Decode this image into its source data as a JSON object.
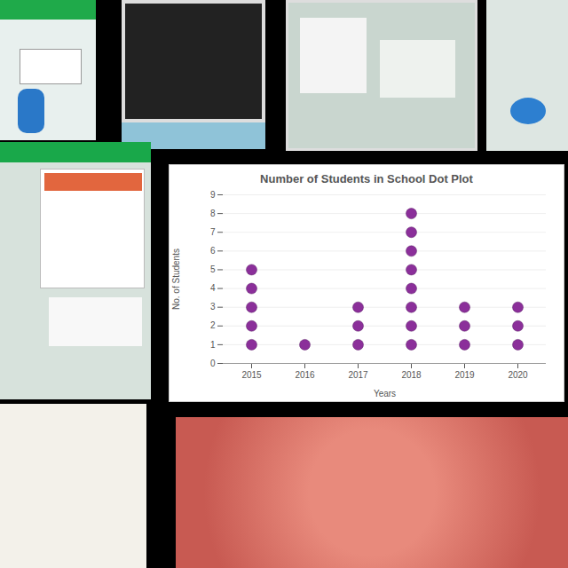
{
  "chart_data": {
    "type": "dot",
    "title": "Number of Students in School Dot Plot",
    "categories": [
      "2015",
      "2016",
      "2017",
      "2018",
      "2019",
      "2020"
    ],
    "values": [
      5,
      1,
      3,
      8,
      3,
      3
    ],
    "color": "#8b2f9a",
    "ylim": [
      0,
      9
    ],
    "yticks": [
      0,
      1,
      2,
      3,
      4,
      5,
      6,
      7,
      8,
      9
    ],
    "xlabel": "Years",
    "ylabel": "No. of Students",
    "grid": true
  }
}
